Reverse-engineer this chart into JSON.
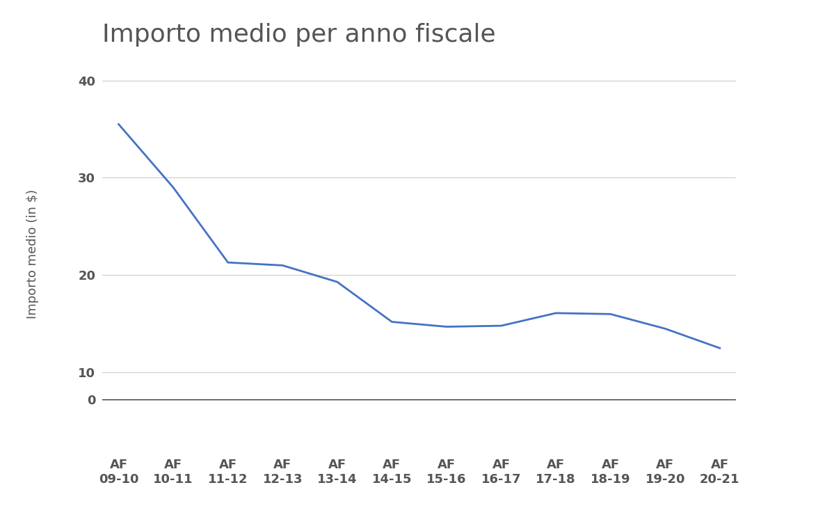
{
  "title": "Importo medio per anno fiscale",
  "xlabel": "",
  "ylabel": "Importo medio (in $)",
  "x_labels": [
    "AF\n09-10",
    "AF\n10-11",
    "AF\n11-12",
    "AF\n12-13",
    "AF\n13-14",
    "AF\n14-15",
    "AF\n15-16",
    "AF\n16-17",
    "AF\n17-18",
    "AF\n18-19",
    "AF\n19-20",
    "AF\n20-21"
  ],
  "y_values": [
    35.5,
    29.0,
    21.3,
    21.0,
    19.3,
    15.2,
    14.7,
    14.8,
    16.1,
    16.0,
    14.5,
    12.5
  ],
  "line_color": "#4472C4",
  "line_width": 2.0,
  "yticks_main": [
    10,
    20,
    30,
    40
  ],
  "ytick_zero": 0,
  "ylim_main": [
    8,
    42
  ],
  "background_color": "#ffffff",
  "title_fontsize": 26,
  "title_color": "#555555",
  "axis_label_fontsize": 13,
  "tick_fontsize": 13,
  "grid_color": "#cccccc",
  "grid_linewidth": 0.8,
  "bottom_spine_color": "#333333"
}
